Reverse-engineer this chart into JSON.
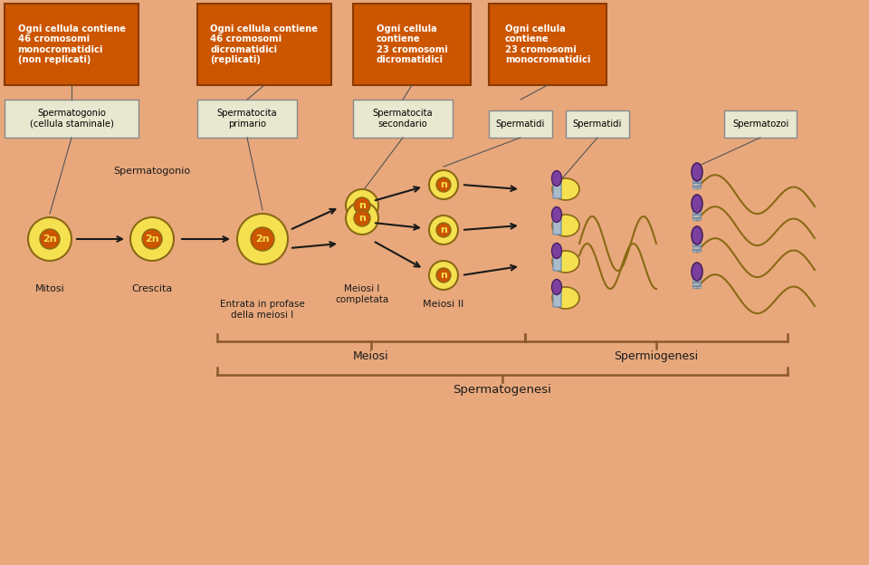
{
  "bg_color": "#E8A87C",
  "orange_box_color": "#CC5500",
  "orange_box_border": "#8B3A00",
  "white_box_color": "#E8E8D0",
  "white_box_border": "#888888",
  "cell_outer_color": "#F5E050",
  "cell_inner_color": "#CC5500",
  "cell_outline": "#8B6914",
  "arrow_color": "#1A1A1A",
  "sperm_head_color": "#7B3FA0",
  "sperm_body_color": "#F5E050",
  "sperm_midpiece_color": "#AABBCC",
  "sperm_tail_color": "#8B6914",
  "brace_color": "#8B5A2B",
  "text_color": "#1A1A1A",
  "orange_box_texts": [
    "Ogni cellula contiene\n46 cromosomi\nmonocromatidici\n(non replicati)",
    "Ogni cellula contiene\n46 cromosomi\ndicromatidici\n(replicati)",
    "Ogni cellula\ncontiene\n23 cromosomi\ndicromatidici",
    "Ogni cellula\ncontiene\n23 cromosomi\nmonocromatidici"
  ],
  "white_box_texts": [
    "Spermatogonio\n(cellula staminale)",
    "Spermatocita\nprimario",
    "Spermatocita\nsecondario",
    "Spermatidi",
    "Spermatidi",
    "Spermatozoi"
  ],
  "stage_labels": [
    "Spermatogonio",
    "Crescita",
    "Mitosi",
    "Entrata in profase\ndella meiosi I",
    "Meiosi I\ncompletata",
    "Meiosi II"
  ],
  "brace_labels": [
    "Meiosi",
    "Spermiogenesi",
    "Spermatogenesi"
  ],
  "figsize": [
    9.6,
    6.24
  ],
  "dpi": 100
}
